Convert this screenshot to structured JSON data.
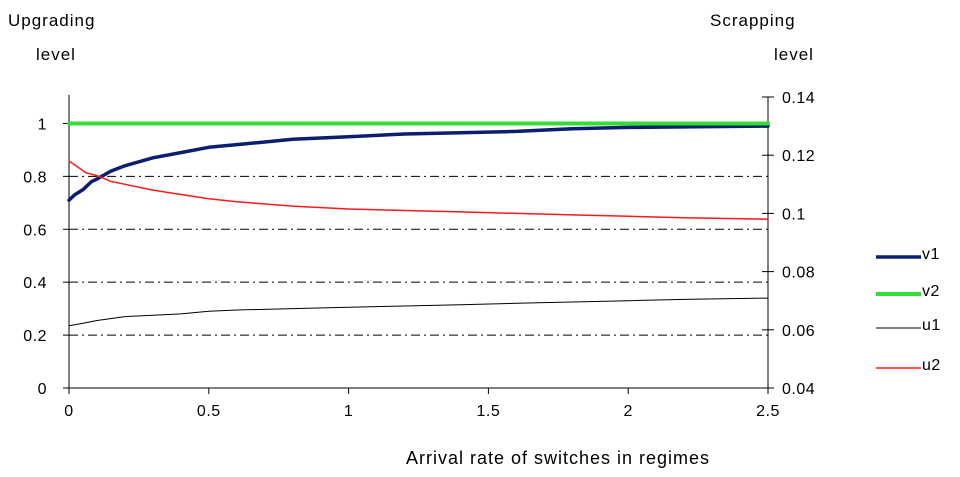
{
  "chart_data": {
    "type": "line",
    "left_axis_title": [
      "Upgrading",
      "level"
    ],
    "right_axis_title": [
      "Scrapping",
      "level"
    ],
    "xlabel": "Arrival rate of switches in regimes",
    "xlim": [
      0,
      2.5
    ],
    "x_ticks": [
      0,
      0.5,
      1,
      1.5,
      2,
      2.5
    ],
    "x_tick_labels": [
      "0",
      "0.5",
      "1",
      "1.5",
      "2",
      "2.5"
    ],
    "ylim_left": [
      0,
      1.1
    ],
    "y_left_ticks": [
      0,
      0.2,
      0.4,
      0.6,
      0.8,
      1
    ],
    "y_left_tick_labels": [
      "0",
      "0.2",
      "0.4",
      "0.6",
      "0.8",
      "1"
    ],
    "ylim_right": [
      0.04,
      0.14
    ],
    "y_right_ticks": [
      0.04,
      0.06,
      0.08,
      0.1,
      0.12,
      0.14
    ],
    "y_right_tick_labels": [
      "0.04",
      "0.06",
      "0.08",
      "0.1",
      "0.12",
      "0.14"
    ],
    "grid": "dashed horizontal lines at 0.2, 0.4, 0.6 and 0.8 (left axis)",
    "legend_position": "right",
    "series": [
      {
        "name": "v1",
        "axis": "left",
        "color": "#0b1f6e",
        "width": 3.5,
        "x": [
          0,
          0.02,
          0.05,
          0.08,
          0.1,
          0.15,
          0.2,
          0.3,
          0.4,
          0.5,
          0.6,
          0.7,
          0.8,
          0.9,
          1.0,
          1.2,
          1.4,
          1.6,
          1.8,
          2.0,
          2.2,
          2.5
        ],
        "values": [
          0.71,
          0.73,
          0.75,
          0.78,
          0.79,
          0.82,
          0.84,
          0.87,
          0.89,
          0.91,
          0.92,
          0.93,
          0.94,
          0.945,
          0.95,
          0.96,
          0.965,
          0.97,
          0.98,
          0.985,
          0.987,
          0.99
        ]
      },
      {
        "name": "v2",
        "axis": "left",
        "color": "#33dd33",
        "width": 4,
        "x": [
          0,
          2.5
        ],
        "values": [
          1,
          1
        ]
      },
      {
        "name": "u1",
        "axis": "left",
        "color": "#000000",
        "width": 1,
        "x": [
          0,
          0.05,
          0.1,
          0.2,
          0.3,
          0.4,
          0.5,
          0.6,
          0.8,
          1.0,
          1.2,
          1.4,
          1.6,
          1.8,
          2.0,
          2.2,
          2.5
        ],
        "values": [
          0.235,
          0.245,
          0.255,
          0.27,
          0.275,
          0.28,
          0.29,
          0.295,
          0.3,
          0.305,
          0.31,
          0.315,
          0.32,
          0.325,
          0.33,
          0.335,
          0.34
        ]
      },
      {
        "name": "u2",
        "axis": "right",
        "color": "#ff1a1a",
        "width": 1.5,
        "x": [
          0,
          0.03,
          0.06,
          0.1,
          0.15,
          0.2,
          0.3,
          0.4,
          0.5,
          0.6,
          0.8,
          1.0,
          1.2,
          1.4,
          1.6,
          1.8,
          2.0,
          2.2,
          2.5
        ],
        "values": [
          0.118,
          0.116,
          0.114,
          0.113,
          0.111,
          0.11,
          0.108,
          0.1065,
          0.105,
          0.104,
          0.1025,
          0.1015,
          0.101,
          0.1005,
          0.1,
          0.0995,
          0.099,
          0.0985,
          0.098
        ]
      }
    ]
  }
}
